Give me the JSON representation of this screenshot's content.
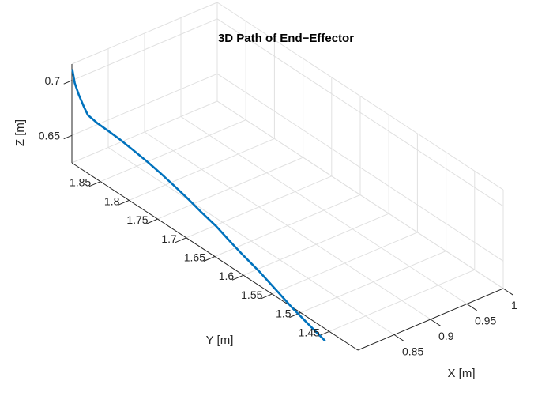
{
  "chart_data": {
    "type": "line",
    "title": "3D Path of End−Effector",
    "xlabel": "X [m]",
    "ylabel": "Y [m]",
    "zlabel": "Z [m]",
    "xlim": [
      0.8,
      1.0
    ],
    "ylim": [
      1.4,
      1.9
    ],
    "zlim": [
      0.625,
      0.715
    ],
    "x_ticks": [
      0.85,
      0.9,
      0.95,
      1
    ],
    "x_tick_labels": [
      "0.85",
      "0.9",
      "0.95",
      "1"
    ],
    "y_ticks": [
      1.45,
      1.5,
      1.55,
      1.6,
      1.65,
      1.7,
      1.75,
      1.8,
      1.85
    ],
    "y_tick_labels": [
      "1.45",
      "1.5",
      "1.55",
      "1.6",
      "1.65",
      "1.7",
      "1.75",
      "1.8",
      "1.85"
    ],
    "z_ticks": [
      0.65,
      0.7
    ],
    "z_tick_labels": [
      "0.65",
      "0.7"
    ],
    "grid": true,
    "series": [
      {
        "color": "#0072bd",
        "x": [
          0.8,
          0.8,
          0.8,
          0.8,
          0.8,
          0.8,
          0.8,
          0.8,
          0.8,
          0.8,
          0.8,
          0.8,
          0.8,
          0.8,
          0.8,
          0.8,
          0.8,
          0.8,
          0.8,
          0.8,
          0.8,
          0.8
        ],
        "y": [
          1.899,
          1.895,
          1.888,
          1.879,
          1.872,
          1.855,
          1.836,
          1.815,
          1.792,
          1.766,
          1.745,
          1.722,
          1.698,
          1.675,
          1.648,
          1.623,
          1.6,
          1.571,
          1.539,
          1.513,
          1.483,
          1.458
        ],
        "z": [
          0.7098,
          0.6993,
          0.6912,
          0.6832,
          0.6781,
          0.6763,
          0.6758,
          0.6749,
          0.6731,
          0.6708,
          0.6684,
          0.6653,
          0.6617,
          0.6575,
          0.6534,
          0.6477,
          0.6429,
          0.6376,
          0.6301,
          0.6241,
          0.6185,
          0.6141
        ]
      }
    ]
  }
}
